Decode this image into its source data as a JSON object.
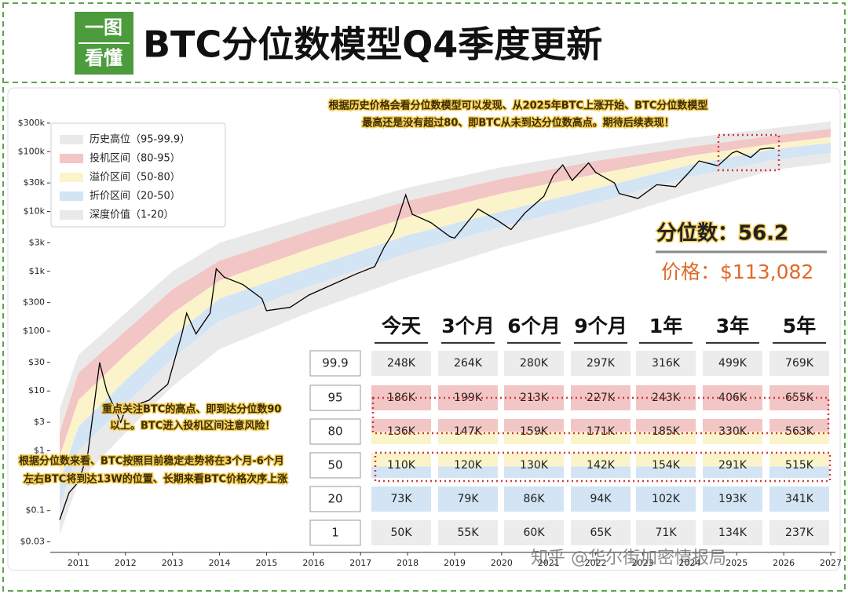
{
  "header": {
    "logo": [
      "一图",
      "看懂"
    ],
    "title": "BTC分位数模型Q4季度更新"
  },
  "chart_data": {
    "type": "line",
    "log_y": true,
    "color": "#000000",
    "xlim": [
      2010.4,
      2027.1
    ],
    "xticks": [
      2011,
      2012,
      2013,
      2014,
      2015,
      2016,
      2017,
      2018,
      2019,
      2020,
      2021,
      2022,
      2023,
      2024,
      2025,
      2026,
      2027
    ],
    "ylim": [
      0.02,
      500000
    ],
    "yticks": [
      {
        "value": 0.03,
        "label": "$0.03"
      },
      {
        "value": 0.1,
        "label": "$0.1"
      },
      {
        "value": 0.3,
        "label": "$0.3"
      },
      {
        "value": 1,
        "label": "$1"
      },
      {
        "value": 3,
        "label": "$3"
      },
      {
        "value": 10,
        "label": "$10"
      },
      {
        "value": 30,
        "label": "$30"
      },
      {
        "value": 100,
        "label": "$100"
      },
      {
        "value": 300,
        "label": "$300"
      },
      {
        "value": 1000,
        "label": "$1k"
      },
      {
        "value": 3000,
        "label": "$3k"
      },
      {
        "value": 10000,
        "label": "$10k"
      },
      {
        "value": 30000,
        "label": "$30k"
      },
      {
        "value": 100000,
        "label": "$100k"
      },
      {
        "value": 300000,
        "label": "$300k"
      }
    ],
    "x": [
      2010.6,
      2010.8,
      2011.0,
      2011.2,
      2011.45,
      2011.6,
      2011.9,
      2012.0,
      2012.5,
      2012.9,
      2013.2,
      2013.3,
      2013.5,
      2013.8,
      2013.93,
      2014.1,
      2014.5,
      2014.9,
      2015.0,
      2015.5,
      2015.9,
      2016.5,
      2016.9,
      2017.3,
      2017.5,
      2017.7,
      2017.96,
      2018.1,
      2018.5,
      2018.9,
      2019.0,
      2019.5,
      2019.9,
      2020.2,
      2020.5,
      2020.9,
      2021.1,
      2021.3,
      2021.5,
      2021.85,
      2022.0,
      2022.4,
      2022.5,
      2022.9,
      2023.3,
      2023.7,
      2023.95,
      2024.2,
      2024.6,
      2024.9,
      2025.0,
      2025.3,
      2025.5,
      2025.7,
      2025.8
    ],
    "values": [
      0.07,
      0.2,
      0.3,
      0.9,
      30,
      10,
      3,
      5,
      7,
      13,
      90,
      200,
      90,
      200,
      1100,
      800,
      600,
      350,
      220,
      250,
      400,
      650,
      900,
      1200,
      2500,
      4500,
      19000,
      9000,
      6500,
      3800,
      3600,
      11000,
      7200,
      5000,
      9500,
      18000,
      40000,
      60000,
      33000,
      65000,
      45000,
      30000,
      20000,
      16500,
      28000,
      26000,
      42000,
      70000,
      58000,
      95000,
      102000,
      80000,
      110000,
      115000,
      113000
    ],
    "bands_x": [
      2010.6,
      2011,
      2012,
      2013,
      2014,
      2016,
      2018,
      2020,
      2022,
      2024,
      2025.8,
      2027
    ],
    "bands": [
      {
        "name": "历史高位（95-99.9）",
        "color": "#e9e9e9",
        "upper": [
          5,
          40,
          200,
          1000,
          3000,
          9000,
          25000,
          55000,
          100000,
          170000,
          248000,
          320000
        ],
        "lower": [
          2,
          20,
          100,
          500,
          1500,
          5000,
          15000,
          35000,
          70000,
          120000,
          186000,
          240000
        ]
      },
      {
        "name": "投机区间（80-95）",
        "color": "#f3c6c6",
        "upper": [
          2,
          20,
          100,
          500,
          1500,
          5000,
          15000,
          35000,
          70000,
          120000,
          186000,
          240000
        ],
        "lower": [
          0.8,
          7,
          40,
          200,
          700,
          2500,
          8000,
          20000,
          42000,
          85000,
          136000,
          175000
        ]
      },
      {
        "name": "溢价区间（50-80）",
        "color": "#fbf4cb",
        "upper": [
          0.8,
          7,
          40,
          200,
          700,
          2500,
          8000,
          20000,
          42000,
          85000,
          136000,
          175000
        ],
        "lower": [
          0.3,
          2.5,
          15,
          80,
          350,
          1200,
          4000,
          10000,
          24000,
          60000,
          110000,
          140000
        ]
      },
      {
        "name": "折价区间（20-50）",
        "color": "#d3e4f4",
        "upper": [
          0.3,
          2.5,
          15,
          80,
          350,
          1200,
          4000,
          10000,
          24000,
          60000,
          110000,
          140000
        ],
        "lower": [
          0.12,
          1,
          6,
          35,
          150,
          600,
          2000,
          5500,
          14000,
          38000,
          73000,
          95000
        ]
      },
      {
        "name": "深度价值（1-20）",
        "color": "#e9e9e9",
        "upper": [
          0.12,
          1,
          6,
          35,
          150,
          600,
          2000,
          5500,
          14000,
          38000,
          73000,
          95000
        ],
        "lower": [
          0.04,
          0.3,
          2,
          12,
          50,
          220,
          800,
          2500,
          6500,
          20000,
          50000,
          65000
        ]
      }
    ]
  },
  "annotations": [
    [
      "根据历史价格会看分位数模型可以发现、从2025年BTC上涨开始、BTC分位数模型",
      "最高还是没有超过80、即BTC从未到达分位数高点。期待后续表现！"
    ],
    [
      "重点关注BTC的高点、即到达分位数90",
      "以上。BTC进入投机区间注意风险！"
    ],
    [
      "根据分位数来看、BTC按照目前稳定走势将在3个月-6个月",
      "左右BTC将到达13W的位置、长期来看BTC价格次序上涨"
    ]
  ],
  "summary": {
    "quantile": "分位数：56.2",
    "price": "价格：$113,082"
  },
  "table": {
    "columns": [
      "今天",
      "3个月",
      "6个月",
      "9个月",
      "1年",
      "3年",
      "5年"
    ],
    "rows": [
      {
        "quantile": "99.9",
        "values": [
          "248K",
          "264K",
          "280K",
          "297K",
          "316K",
          "499K",
          "769K"
        ]
      },
      {
        "quantile": "95",
        "values": [
          "186K",
          "199K",
          "213K",
          "227K",
          "243K",
          "406K",
          "655K"
        ]
      },
      {
        "quantile": "80",
        "values": [
          "136K",
          "147K",
          "159K",
          "171K",
          "185K",
          "330K",
          "563K"
        ]
      },
      {
        "quantile": "50",
        "values": [
          "110K",
          "120K",
          "130K",
          "142K",
          "154K",
          "291K",
          "515K"
        ]
      },
      {
        "quantile": "20",
        "values": [
          "73K",
          "79K",
          "86K",
          "94K",
          "102K",
          "193K",
          "341K"
        ]
      },
      {
        "quantile": "1",
        "values": [
          "50K",
          "55K",
          "60K",
          "65K",
          "71K",
          "134K",
          "237K"
        ]
      }
    ]
  },
  "watermark": "知乎 @华尔街加密情报局"
}
